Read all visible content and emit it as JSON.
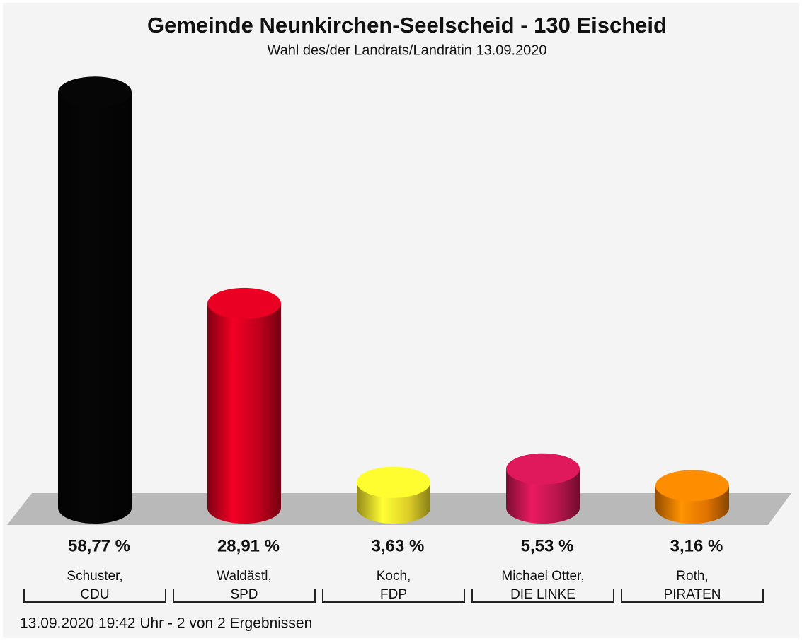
{
  "chart_data": {
    "type": "bar",
    "title": "Gemeinde Neunkirchen-Seelscheid - 130 Eischeid",
    "subtitle": "Wahl des/der Landrats/Landrätin 13.09.2020",
    "categories": [
      "Schuster,",
      "Waldästl,",
      "Koch,",
      "Michael Otter,",
      "Roth,"
    ],
    "parties": [
      "CDU",
      "SPD",
      "FDP",
      "DIE LINKE",
      "PIRATEN"
    ],
    "values": [
      58.77,
      28.91,
      3.63,
      5.53,
      3.16
    ],
    "value_labels": [
      "58,77 %",
      "28,91 %",
      "3,63 %",
      "5,53 %",
      "3,16 %"
    ],
    "colors": [
      "#050505",
      "#d4001f",
      "#f7e62c",
      "#cc1754",
      "#f88000"
    ],
    "footer": "13.09.2020 19:42 Uhr - 2 von 2 Ergebnissen"
  }
}
